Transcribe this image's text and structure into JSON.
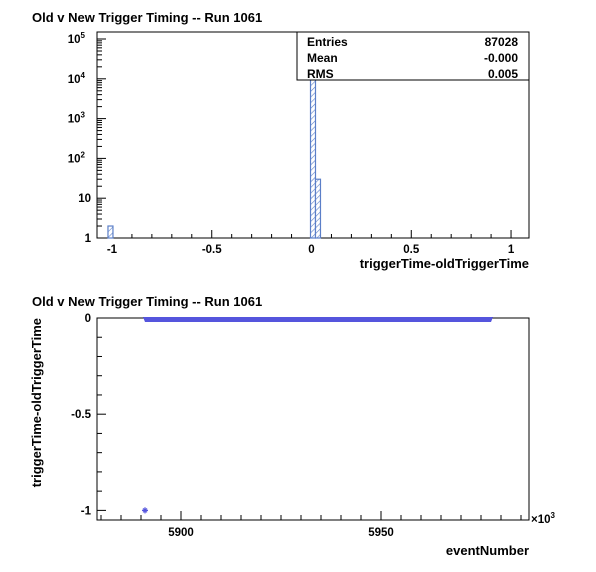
{
  "chart_data": [
    {
      "type": "bar",
      "title": "Old v New Trigger Timing -- Run 1061",
      "xlabel": "triggerTime-oldTriggerTime",
      "ylabel": "",
      "xlim": [
        -1.075,
        1.09
      ],
      "ylim": [
        1,
        150000
      ],
      "log_y": true,
      "x_ticks": [
        "-1",
        "-0.5",
        "0",
        "0.5",
        "1"
      ],
      "y_ticks": [
        "1",
        "10",
        "10",
        "10",
        "10",
        "10"
      ],
      "y_tick_exponents": [
        "",
        "",
        "2",
        "3",
        "4",
        "5"
      ],
      "bins": [
        {
          "x0": -1.02,
          "x1": -0.995,
          "count": 2
        },
        {
          "x0": -0.005,
          "x1": 0.02,
          "count": 87000
        },
        {
          "x0": 0.02,
          "x1": 0.045,
          "count": 30
        }
      ],
      "series_color": "#5b7fc8",
      "legend_position": "top-right",
      "stats": {
        "entries_label": "Entries",
        "entries_value": "87028",
        "mean_label": "Mean",
        "mean_value": "-0.000",
        "rms_label": "RMS",
        "rms_value": "0.005"
      }
    },
    {
      "type": "scatter",
      "title": "Old v New Trigger Timing -- Run 1061",
      "xlabel": "eventNumber",
      "ylabel": "triggerTime-oldTriggerTime",
      "x_multiplier": "×10",
      "x_multiplier_exponent": "3",
      "xlim": [
        5879,
        5987
      ],
      "ylim": [
        -1.05,
        0
      ],
      "x_ticks": [
        "5900",
        "5950"
      ],
      "y_ticks": [
        "0",
        "-0.5",
        "-1"
      ],
      "band": {
        "x_start": 5891,
        "x_end": 5977.5,
        "y": 0
      },
      "points": [
        {
          "x": 5891,
          "y": -1
        }
      ],
      "series_color": "#5555dd"
    }
  ]
}
